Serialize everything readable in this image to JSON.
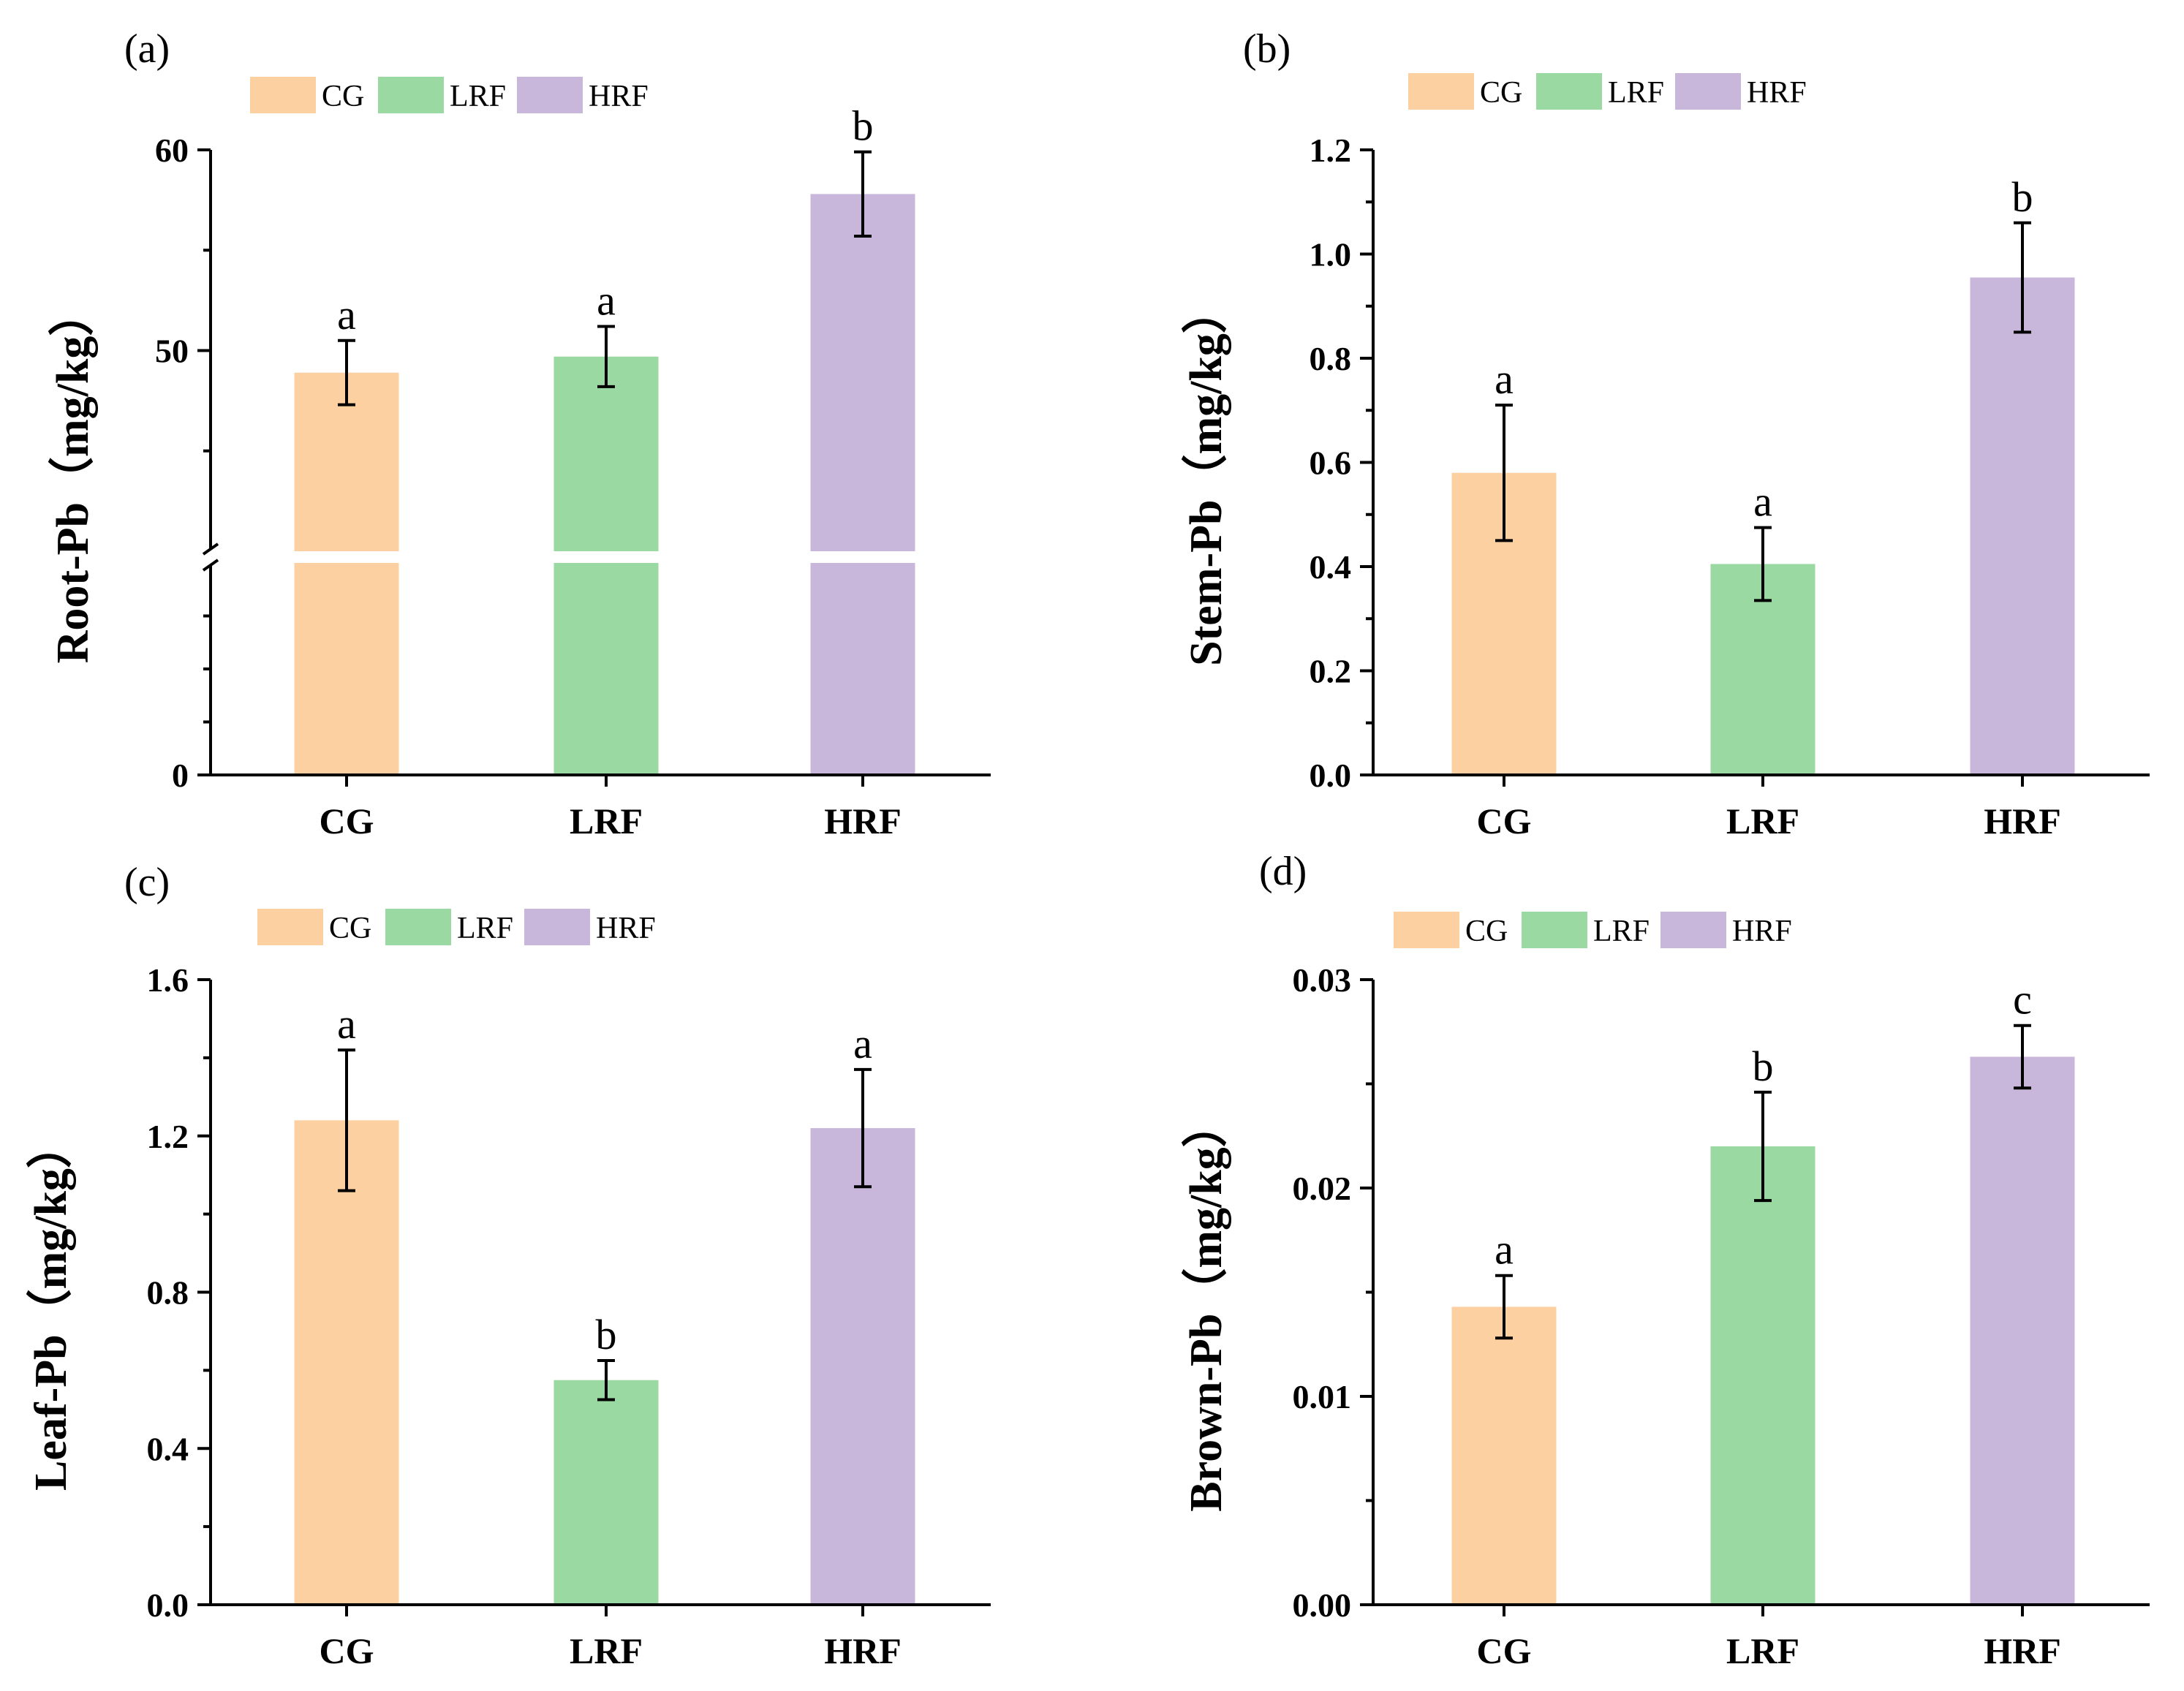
{
  "chart_data": [
    {
      "type": "bar",
      "panel": "(a)",
      "ylabel": "Root-Pb（mg/kg）",
      "categories": [
        "CG",
        "LRF",
        "HRF"
      ],
      "values": [
        48.9,
        49.7,
        57.8
      ],
      "errors": [
        1.6,
        1.5,
        2.1
      ],
      "significance": [
        "a",
        "a",
        "b"
      ],
      "ylim": [
        0,
        60
      ],
      "axis_break": {
        "from": 0,
        "to": 40
      },
      "yticks": [
        0,
        50,
        60
      ],
      "ytick_labels": [
        "0",
        "50",
        "60"
      ],
      "legend": [
        "CG",
        "LRF",
        "HRF"
      ],
      "legend_placement": "top-left"
    },
    {
      "type": "bar",
      "panel": "(b)",
      "ylabel": "Stem-Pb（mg/kg）",
      "categories": [
        "CG",
        "LRF",
        "HRF"
      ],
      "values": [
        0.58,
        0.405,
        0.955
      ],
      "errors": [
        0.13,
        0.07,
        0.105
      ],
      "significance": [
        "a",
        "a",
        "b"
      ],
      "ylim": [
        0,
        1.2
      ],
      "yticks": [
        0,
        0.2,
        0.4,
        0.6,
        0.8,
        1.0,
        1.2
      ],
      "ytick_labels": [
        "0.0",
        "0.2",
        "0.4",
        "0.6",
        "0.8",
        "1.0",
        "1.2"
      ],
      "legend": [
        "CG",
        "LRF",
        "HRF"
      ],
      "legend_placement": "top-left"
    },
    {
      "type": "bar",
      "panel": "(c)",
      "ylabel": "Leaf-Pb（mg/kg）",
      "categories": [
        "CG",
        "LRF",
        "HRF"
      ],
      "values": [
        1.24,
        0.575,
        1.22
      ],
      "errors": [
        0.18,
        0.05,
        0.15
      ],
      "significance": [
        "a",
        "b",
        "a"
      ],
      "ylim": [
        0,
        1.6
      ],
      "yticks": [
        0,
        0.4,
        0.8,
        1.2,
        1.6
      ],
      "ytick_labels": [
        "0.0",
        "0.4",
        "0.8",
        "1.2",
        "1.6"
      ],
      "legend": [
        "CG",
        "LRF",
        "HRF"
      ],
      "legend_placement": "top-left"
    },
    {
      "type": "bar",
      "panel": "(d)",
      "ylabel": "Brown-Pb（mg/kg）",
      "categories": [
        "CG",
        "LRF",
        "HRF"
      ],
      "values": [
        0.0143,
        0.022,
        0.0263
      ],
      "errors": [
        0.0015,
        0.0026,
        0.0015
      ],
      "significance": [
        "a",
        "b",
        "c"
      ],
      "ylim": [
        0,
        0.03
      ],
      "yticks": [
        0,
        0.01,
        0.02,
        0.03
      ],
      "ytick_labels": [
        "0.00",
        "0.01",
        "0.02",
        "0.03"
      ],
      "legend": [
        "CG",
        "LRF",
        "HRF"
      ],
      "legend_placement": "top-left"
    }
  ],
  "colors": {
    "CG": "#fdd0a2",
    "LRF": "#9ad9a2",
    "HRF": "#c9b7db"
  }
}
